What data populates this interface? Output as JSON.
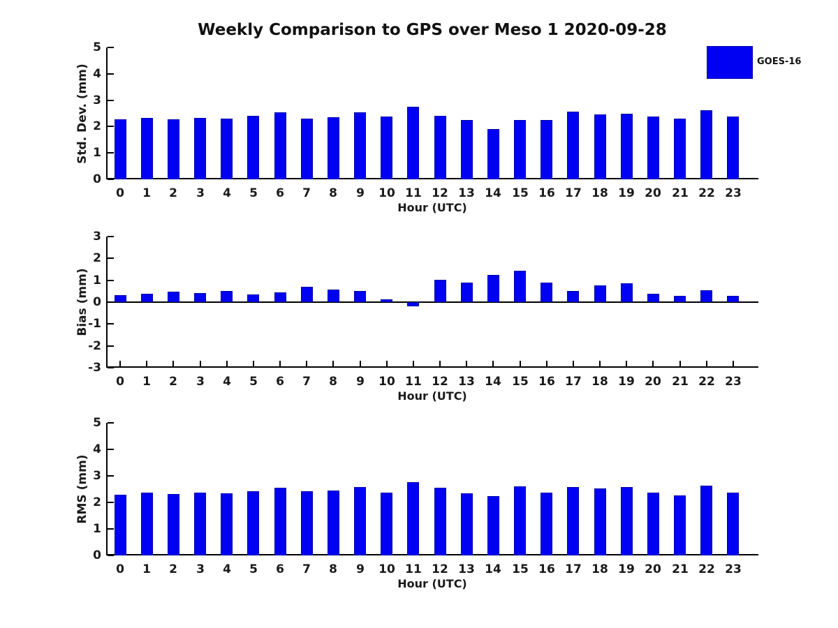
{
  "title": "Weekly Comparison to GPS over Meso 1 2020-09-28",
  "legend": {
    "label": "GOES-16",
    "position": "top-right"
  },
  "colors": {
    "bar_fill": "#0000f2",
    "bar_edge": "#0000a8",
    "axis": "#000000",
    "text": "#1a1a1a"
  },
  "chart_data": [
    {
      "type": "bar",
      "title": "",
      "ylabel": "Std. Dev. (mm)",
      "xlabel": "Hour (UTC)",
      "ylim": [
        0,
        5
      ],
      "yticks": [
        "0",
        "1",
        "2",
        "3",
        "4",
        "5"
      ],
      "grid": false,
      "series_name": "GOES-16",
      "categories": [
        "0",
        "1",
        "2",
        "3",
        "4",
        "5",
        "6",
        "7",
        "8",
        "9",
        "10",
        "11",
        "12",
        "13",
        "14",
        "15",
        "16",
        "17",
        "18",
        "19",
        "20",
        "21",
        "22",
        "23"
      ],
      "values": [
        2.27,
        2.32,
        2.27,
        2.32,
        2.29,
        2.4,
        2.53,
        2.3,
        2.36,
        2.53,
        2.37,
        2.76,
        2.42,
        2.24,
        1.9,
        2.24,
        2.24,
        2.56,
        2.47,
        2.5,
        2.39,
        2.29,
        2.62,
        2.39
      ]
    },
    {
      "type": "bar",
      "title": "",
      "ylabel": "Bias (mm)",
      "xlabel": "Hour (UTC)",
      "ylim": [
        -3,
        3
      ],
      "yticks": [
        "3",
        "2",
        "1",
        "0",
        "-1",
        "-2",
        "-3"
      ],
      "grid": false,
      "series_name": "GOES-16",
      "categories": [
        "0",
        "1",
        "2",
        "3",
        "4",
        "5",
        "6",
        "7",
        "8",
        "9",
        "10",
        "11",
        "12",
        "13",
        "14",
        "15",
        "16",
        "17",
        "18",
        "19",
        "20",
        "21",
        "22",
        "23"
      ],
      "values": [
        0.32,
        0.38,
        0.49,
        0.41,
        0.5,
        0.35,
        0.46,
        0.71,
        0.57,
        0.5,
        0.12,
        -0.2,
        1.02,
        0.9,
        1.26,
        1.43,
        0.9,
        0.52,
        0.77,
        0.86,
        0.4,
        0.28,
        0.54,
        0.3
      ]
    },
    {
      "type": "bar",
      "title": "",
      "ylabel": "RMS (mm)",
      "xlabel": "Hour (UTC)",
      "ylim": [
        0,
        5
      ],
      "yticks": [
        "0",
        "1",
        "2",
        "3",
        "4",
        "5"
      ],
      "grid": false,
      "series_name": "GOES-16",
      "categories": [
        "0",
        "1",
        "2",
        "3",
        "4",
        "5",
        "6",
        "7",
        "8",
        "9",
        "10",
        "11",
        "12",
        "13",
        "14",
        "15",
        "16",
        "17",
        "18",
        "19",
        "20",
        "21",
        "22",
        "23"
      ],
      "values": [
        2.3,
        2.37,
        2.32,
        2.37,
        2.34,
        2.42,
        2.55,
        2.42,
        2.46,
        2.57,
        2.37,
        2.76,
        2.56,
        2.35,
        2.24,
        2.6,
        2.37,
        2.58,
        2.52,
        2.57,
        2.38,
        2.27,
        2.63,
        2.37
      ]
    }
  ]
}
